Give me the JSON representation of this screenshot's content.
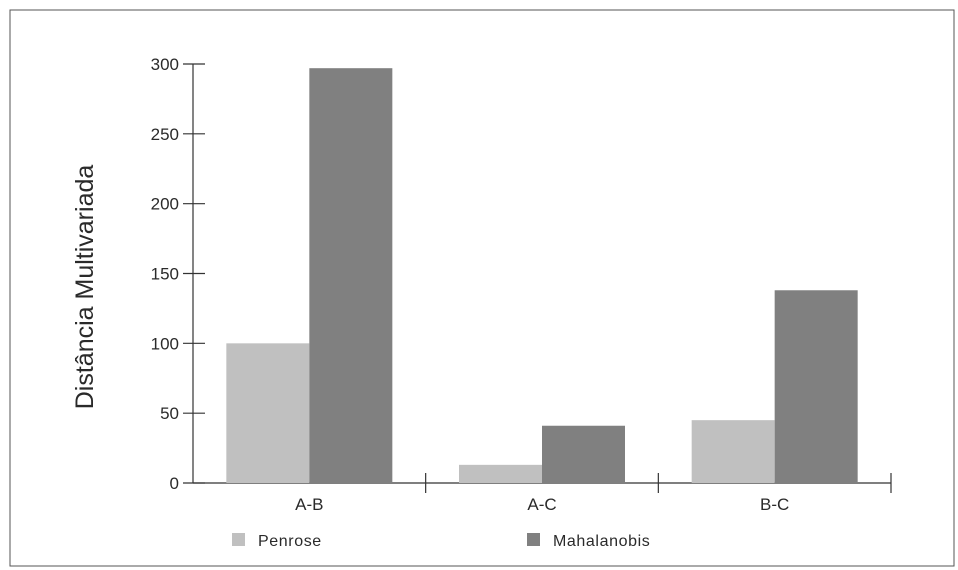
{
  "chart_data": {
    "type": "bar",
    "title": "",
    "xlabel": "",
    "ylabel": "Distância Multivariada",
    "ylim": [
      0,
      300
    ],
    "yticks": [
      0,
      50,
      100,
      150,
      200,
      250,
      300
    ],
    "categories": [
      "A-B",
      "A-C",
      "B-C"
    ],
    "series": [
      {
        "name": "Penrose",
        "values": [
          100,
          13,
          45
        ],
        "color": "#c0c0c0"
      },
      {
        "name": "Mahalanobis",
        "values": [
          297,
          41,
          138
        ],
        "color": "#808080"
      }
    ],
    "grid": false,
    "legend": "bottom"
  }
}
